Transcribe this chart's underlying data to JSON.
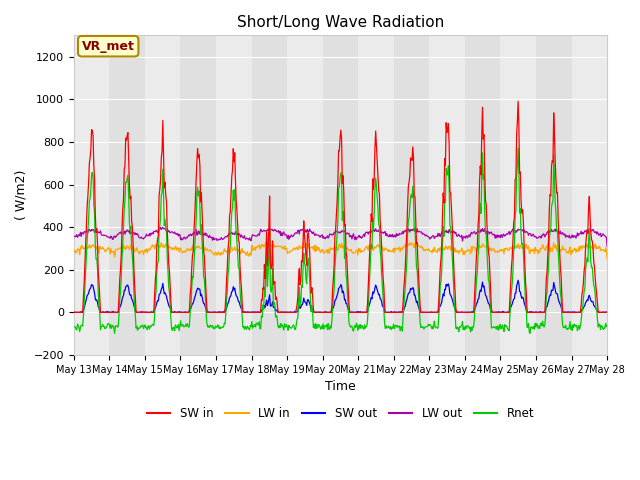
{
  "title": "Short/Long Wave Radiation",
  "xlabel": "Time",
  "ylabel": "( W/m2)",
  "ylim": [
    -200,
    1300
  ],
  "yticks": [
    -200,
    0,
    200,
    400,
    600,
    800,
    1000,
    1200
  ],
  "colors": {
    "SW_in": "#ff0000",
    "LW_in": "#ffa500",
    "SW_out": "#0000ff",
    "LW_out": "#aa00aa",
    "Rnet": "#00cc00"
  },
  "legend_labels": [
    "SW in",
    "LW in",
    "SW out",
    "LW out",
    "Rnet"
  ],
  "annotation_text": "VR_met",
  "annotation_fg": "#880000",
  "annotation_bg": "#ffffcc",
  "annotation_edge": "#aa8800",
  "plot_bg": "#e8e8e8",
  "stripe_bg": "#d8d8d8",
  "n_days": 15,
  "start_day": 13
}
